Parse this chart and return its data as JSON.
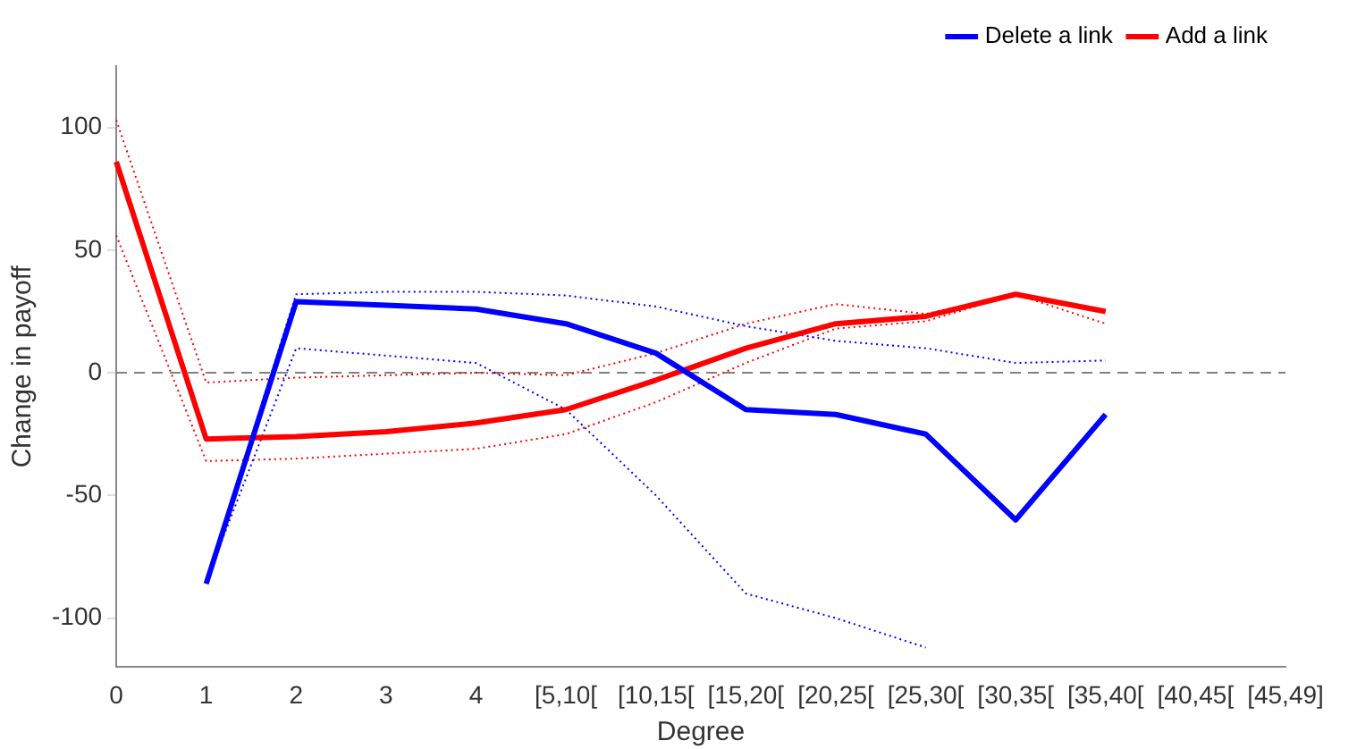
{
  "chart_data": {
    "type": "line",
    "xlabel": "Degree",
    "ylabel": "Change in payoff",
    "categories": [
      "0",
      "1",
      "2",
      "3",
      "4",
      "[5,10[",
      "[10,15[",
      "[15,20[",
      "[20,25[",
      "[25,30[",
      "[30,35[",
      "[35,40[",
      "[40,45[",
      "[45,49]"
    ],
    "series": [
      {
        "name": "Delete a link",
        "color": "#0000ff",
        "values": [
          null,
          -86,
          29,
          27.5,
          26,
          20,
          8,
          -15,
          -17,
          -25,
          -60,
          -17,
          null,
          null
        ]
      },
      {
        "name": "Add a link",
        "color": "#ff0000",
        "values": [
          86,
          -27,
          -26,
          -24,
          -20.5,
          -15,
          -3,
          10,
          20,
          23,
          32,
          25,
          null,
          null
        ]
      },
      {
        "color": "#0000ff",
        "line_style": "dotted",
        "values": [
          null,
          -85,
          32,
          33,
          33,
          31.5,
          27,
          19,
          13,
          10,
          4,
          5,
          null,
          null
        ]
      },
      {
        "color": "#0000ff",
        "line_style": "dotted",
        "values": [
          null,
          -85,
          10,
          7,
          4,
          -15,
          -50,
          -90,
          -100,
          -112,
          null,
          null,
          null,
          null
        ]
      },
      {
        "color": "#ff0000",
        "line_style": "dotted",
        "values": [
          103,
          -4,
          -2,
          -1,
          0,
          -1,
          8,
          20,
          28,
          24,
          32,
          20,
          null,
          null
        ]
      },
      {
        "color": "#ff0000",
        "line_style": "dotted",
        "values": [
          56,
          -36,
          -35,
          -33,
          -31,
          -25,
          -12,
          4,
          18,
          21,
          32,
          25,
          null,
          null
        ]
      }
    ],
    "ylim": [
      -120,
      125
    ],
    "yticks": [
      -100,
      -50,
      0,
      50,
      100
    ],
    "ref_lines": [
      {
        "axis": "y",
        "value": 0,
        "color": "#808080",
        "line_style": "dashed"
      }
    ],
    "grid": false,
    "legend": "top right",
    "marker": "none",
    "line_style": "solid"
  }
}
